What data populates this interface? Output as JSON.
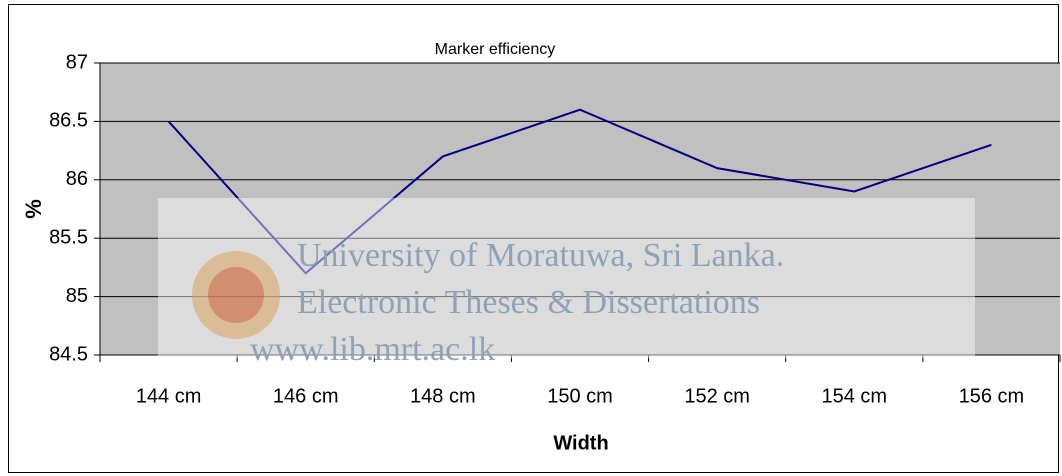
{
  "chart_data": {
    "type": "line",
    "title": "Marker efficiency",
    "x_label": "Width",
    "y_label": "%",
    "categories": [
      "144 cm",
      "146 cm",
      "148 cm",
      "150 cm",
      "152 cm",
      "154 cm",
      "156 cm"
    ],
    "series": [
      {
        "name": "Marker efficiency",
        "color": "#000080",
        "values": [
          86.5,
          85.2,
          86.2,
          86.6,
          86.1,
          85.9,
          86.3
        ]
      }
    ],
    "ylim": [
      84.5,
      87
    ],
    "yticks": [
      84.5,
      85,
      85.5,
      86,
      86.5,
      87
    ],
    "grid": true,
    "watermark": [
      "University of Moratuwa, Sri Lanka.",
      "Electronic Theses & Dissertations",
      "www.lib.mrt.ac.lk"
    ]
  }
}
